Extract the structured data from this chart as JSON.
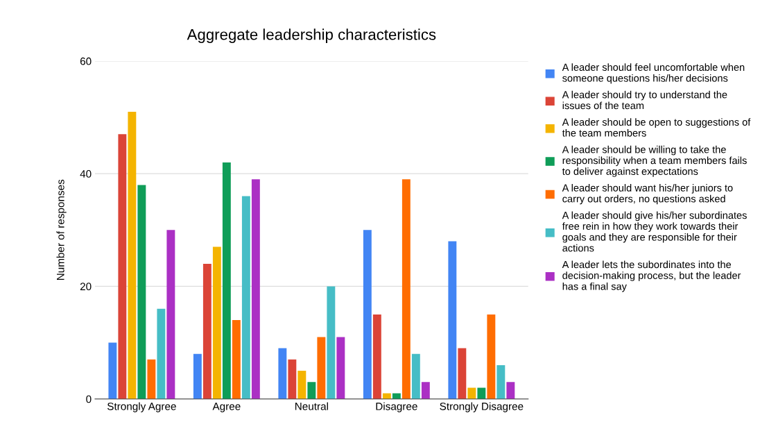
{
  "chart_data": {
    "type": "bar",
    "title": "Aggregate leadership characteristics",
    "ylabel": "Number of responses",
    "categories": [
      "Strongly Agree",
      "Agree",
      "Neutral",
      "Disagree",
      "Strongly Disagree"
    ],
    "series": [
      {
        "name": "A leader should feel uncomfortable when someone questions his/her decisions",
        "color": "#4285f4",
        "values": [
          10,
          8,
          9,
          30,
          28
        ]
      },
      {
        "name": "A leader should try to understand the issues of the team",
        "color": "#db4437",
        "values": [
          47,
          24,
          7,
          15,
          9
        ]
      },
      {
        "name": "A leader should be open to suggestions of the team members",
        "color": "#f4b400",
        "values": [
          51,
          27,
          5,
          1,
          2
        ]
      },
      {
        "name": "A leader should be willing to take the responsibility when a team members fails to deliver against expectations",
        "color": "#0f9d58",
        "values": [
          38,
          42,
          3,
          1,
          2
        ]
      },
      {
        "name": "A leader should want his/her juniors to carry out orders, no questions asked",
        "color": "#ff6d01",
        "values": [
          7,
          14,
          11,
          39,
          15
        ]
      },
      {
        "name": "A leader should give his/her subordinates free rein in how they work towards their goals and they are responsible for their actions",
        "color": "#46bdc6",
        "values": [
          16,
          36,
          20,
          8,
          6
        ]
      },
      {
        "name": "A leader lets the subordinates into the decision-making process, but the leader has a final say",
        "color": "#ab30c4",
        "values": [
          30,
          39,
          11,
          3,
          3
        ]
      }
    ],
    "ylim": [
      0,
      60
    ],
    "yticks": [
      0,
      20,
      40,
      60
    ],
    "grid": "y",
    "legend": "right"
  }
}
